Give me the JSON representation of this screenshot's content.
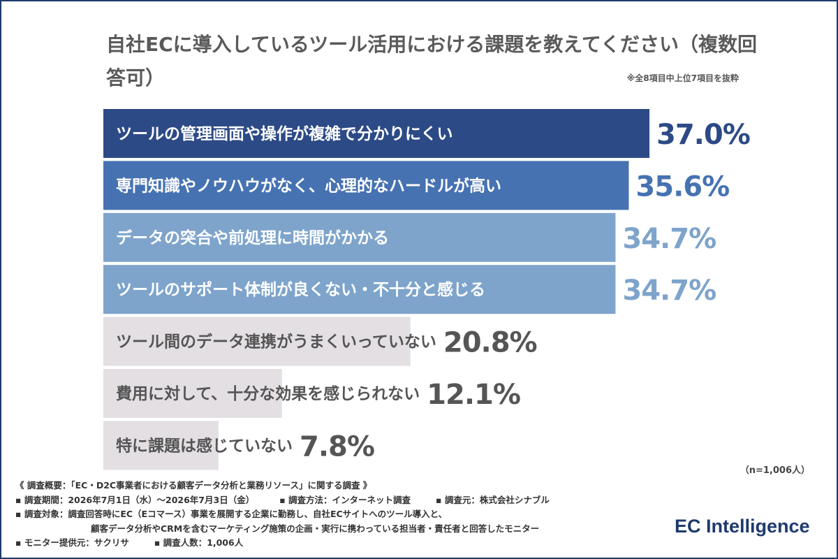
{
  "title": "自社ECに導入しているツール活用における課題を教えてください（複数回答可）",
  "note": "※全8項目中上位7項目を抜粋",
  "chart_data": {
    "type": "bar",
    "orientation": "horizontal",
    "categories": [
      "ツールの管理画面や操作が複雑で分かりにくい",
      "専門知識やノウハウがなく、心理的なハードルが高い",
      "データの突合や前処理に時間がかかる",
      "ツールのサポート体制が良くない・不十分と感じる",
      "ツール間のデータ連携がうまくいっていない",
      "費用に対して、十分な効果を感じられない",
      "特に課題は感じていない"
    ],
    "values": [
      37.0,
      35.6,
      34.7,
      34.7,
      20.8,
      12.1,
      7.8
    ],
    "value_labels": [
      "37.0%",
      "35.6%",
      "34.7%",
      "34.7%",
      "20.8%",
      "12.1%",
      "7.8%"
    ],
    "bar_colors": [
      "#2c4a86",
      "#4672b2",
      "#7ea4cb",
      "#7ea4cb",
      "#e3dfe3",
      "#e3dfe3",
      "#e3dfe3"
    ],
    "label_colors": [
      "#ffffff",
      "#ffffff",
      "#ffffff",
      "#ffffff",
      "#555555",
      "#555555",
      "#555555"
    ],
    "value_colors": [
      "#2c4a86",
      "#4672b2",
      "#7ea4cb",
      "#7ea4cb",
      "#555555",
      "#555555",
      "#555555"
    ],
    "xlim": [
      0,
      37.0
    ],
    "title": "自社ECに導入しているツール活用における課題を教えてください（複数回答可）",
    "xlabel": "",
    "ylabel": ""
  },
  "sample_size": "（n=1,006人）",
  "survey": {
    "overview": "《 調査概要：「EC・D2C事業者における顧客データ分析と業務リソース」に関する調査 》",
    "period": "▪ 調査期間：2026年7月1日（水）〜2026年7月3日（金）",
    "method": "▪ 調査方法：インターネット調査",
    "source": "▪ 調査元：株式会社シナブル",
    "target_1": "▪ 調査対象：調査回答時にEC（Eコマース）事業を展開する企業に勤務し、自社ECサイトへのツール導入と、",
    "target_2": "顧客データ分析やCRMを含むマーケティング施策の企画・実行に携わっている担当者・責任者と回答したモニター",
    "provider": "▪ モニター提供元：サクリサ",
    "count": "▪ 調査人数：1,006人"
  },
  "logo": "EC Intelligence"
}
